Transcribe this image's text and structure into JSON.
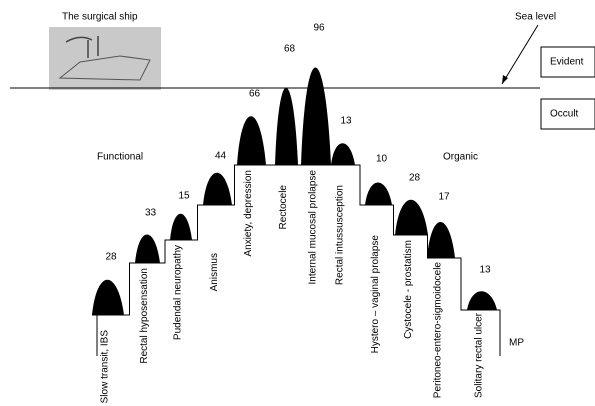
{
  "title": "The surgical ship",
  "sea_level": "Sea level",
  "zones": {
    "evident": "Evident",
    "occult": "Occult"
  },
  "groups": {
    "functional": "Functional",
    "organic": "Organic"
  },
  "end_label": "MP",
  "peaks": [
    {
      "value": "28",
      "label": "Slow transit, IBS"
    },
    {
      "value": "33",
      "label": "Rectal hyposensation"
    },
    {
      "value": "15",
      "label": "Pudendal neuropathy"
    },
    {
      "value": "44",
      "label": "Anismus"
    },
    {
      "value": "66",
      "label": "Anxiety, depression"
    },
    {
      "value": "68",
      "label": "Rectocele"
    },
    {
      "value": "96",
      "label": "Internal mucosal prolapse"
    },
    {
      "value": "13",
      "label": "Rectal intussusception"
    },
    {
      "value": "10",
      "label": "Hystero – vaginal prolapse"
    },
    {
      "value": "28",
      "label": "Cystocele - prostatism"
    },
    {
      "value": "17",
      "label": "Peritoneo-entero-sigmoidocele"
    },
    {
      "value": "13",
      "label": "Solitary rectal ulcer"
    }
  ]
}
